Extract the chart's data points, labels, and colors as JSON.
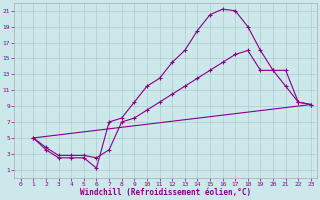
{
  "xlabel": "Windchill (Refroidissement éolien,°C)",
  "background_color": "#cce8ea",
  "line_color": "#880088",
  "grid_color": "#aacccc",
  "xlim": [
    -0.5,
    23.5
  ],
  "ylim": [
    0,
    22
  ],
  "xticks": [
    0,
    1,
    2,
    3,
    4,
    5,
    6,
    7,
    8,
    9,
    10,
    11,
    12,
    13,
    14,
    15,
    16,
    17,
    18,
    19,
    20,
    21,
    22,
    23
  ],
  "yticks": [
    1,
    3,
    5,
    7,
    9,
    11,
    13,
    15,
    17,
    19,
    21
  ],
  "curve1_x": [
    1,
    2,
    3,
    4,
    5,
    6,
    7,
    8,
    9,
    10,
    11,
    12,
    13,
    14,
    15,
    16,
    17,
    18,
    19,
    20,
    21,
    22,
    23
  ],
  "curve1_y": [
    5,
    3.5,
    2.5,
    2.5,
    2.5,
    1.2,
    7,
    7.5,
    9.5,
    11.5,
    12.5,
    14.5,
    16,
    18.5,
    20.5,
    21.2,
    21,
    19,
    16,
    13.5,
    11.5,
    9.5,
    9.2
  ],
  "curve2_x": [
    1,
    2,
    3,
    4,
    5,
    6,
    7,
    8,
    9,
    10,
    11,
    12,
    13,
    14,
    15,
    16,
    17,
    18,
    19,
    20,
    21,
    22,
    23
  ],
  "curve2_y": [
    5,
    3.8,
    2.8,
    2.8,
    2.8,
    2.5,
    3.5,
    7,
    7.5,
    8.5,
    9.5,
    10.5,
    11.5,
    12.5,
    13.5,
    14.5,
    15.5,
    16,
    13.5,
    13.5,
    13.5,
    9.5,
    9.2
  ],
  "curve3_x": [
    1,
    23
  ],
  "curve3_y": [
    5,
    9.2
  ]
}
